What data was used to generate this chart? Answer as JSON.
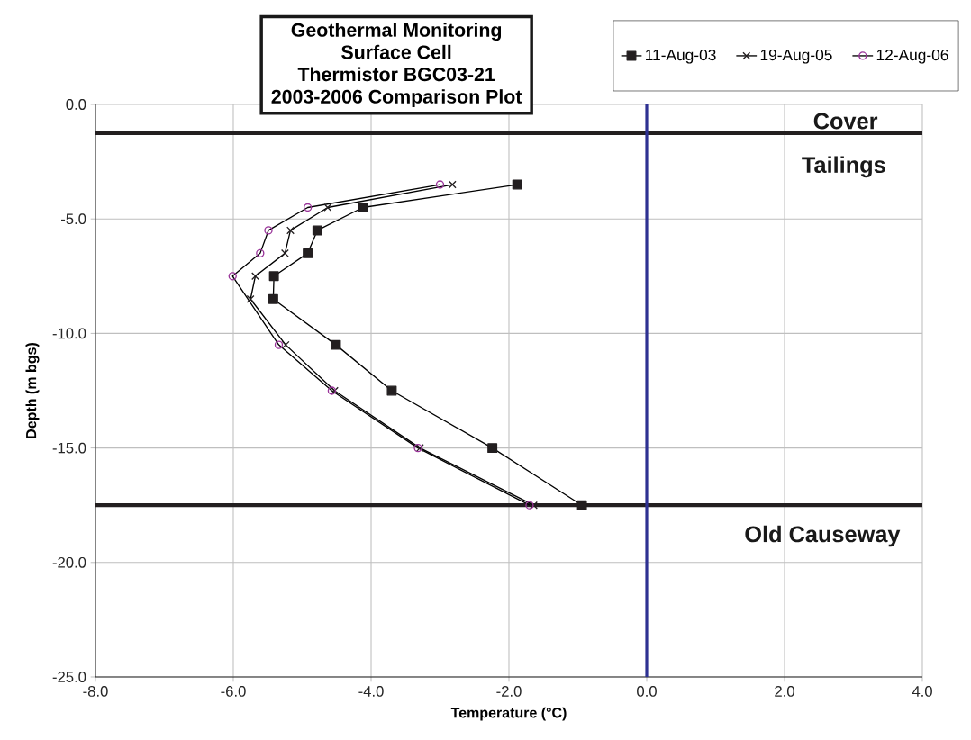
{
  "chart_data": {
    "type": "line",
    "title": "Geothermal Monitoring Surface Cell Thermistor BGC03-21",
    "subtitle": "2003-2006 Comparison Plot",
    "xlabel": "Temperature (°C)",
    "ylabel": "Depth (m bgs)",
    "xlim": [
      -8,
      4
    ],
    "ylim": [
      -25,
      0
    ],
    "xticks": [
      {
        "value": -8,
        "label": "-8.0"
      },
      {
        "value": -6,
        "label": "-6.0"
      },
      {
        "value": -4,
        "label": "-4.0"
      },
      {
        "value": -2,
        "label": "-2.0"
      },
      {
        "value": 0,
        "label": "0.0"
      },
      {
        "value": 2,
        "label": "2.0"
      },
      {
        "value": 4,
        "label": "4.0"
      }
    ],
    "yticks": [
      {
        "value": 0,
        "label": "0.0"
      },
      {
        "value": -5,
        "label": "-5.0"
      },
      {
        "value": -10,
        "label": "-10.0"
      },
      {
        "value": -15,
        "label": "-15.0"
      },
      {
        "value": -20,
        "label": "-20.0"
      },
      {
        "value": -25,
        "label": "-25.0"
      }
    ],
    "grid": true,
    "legend": "top right",
    "series": [
      {
        "name": "11-Aug-03",
        "color": "#231f20",
        "marker": "square",
        "x": [
          -1.88,
          -4.12,
          -4.78,
          -4.92,
          -5.41,
          -5.42,
          -4.51,
          -3.7,
          -2.24,
          -0.94
        ],
        "values": [
          -3.5,
          -4.5,
          -5.5,
          -6.5,
          -7.5,
          -8.5,
          -10.5,
          -12.5,
          -15,
          -17.5
        ]
      },
      {
        "name": "19-Aug-05",
        "color": "#231f20",
        "marker": "cross",
        "x": [
          -2.82,
          -4.63,
          -5.17,
          -5.25,
          -5.68,
          -5.75,
          -5.24,
          -4.53,
          -3.29,
          -1.64
        ],
        "values": [
          -3.5,
          -4.5,
          -5.5,
          -6.5,
          -7.5,
          -8.5,
          -10.5,
          -12.5,
          -15,
          -17.5
        ]
      },
      {
        "name": "12-Aug-06",
        "color": "#993399",
        "marker": "circle",
        "x": [
          -3.0,
          -4.92,
          -5.49,
          -5.61,
          -6.01,
          -5.34,
          -4.57,
          -3.32,
          -1.7
        ],
        "values": [
          -3.5,
          -4.5,
          -5.5,
          -6.5,
          -7.5,
          -10.5,
          -12.5,
          -15,
          -17.5
        ]
      }
    ],
    "ref_lines": [
      {
        "axis": "y",
        "value": -1.25,
        "color": "#231f20"
      },
      {
        "axis": "y",
        "value": -17.5,
        "color": "#231f20"
      },
      {
        "axis": "x",
        "value": 0,
        "color": "#2e3192"
      }
    ],
    "annotations": [
      "Cover",
      "Tailings",
      "Old Causeway"
    ]
  }
}
